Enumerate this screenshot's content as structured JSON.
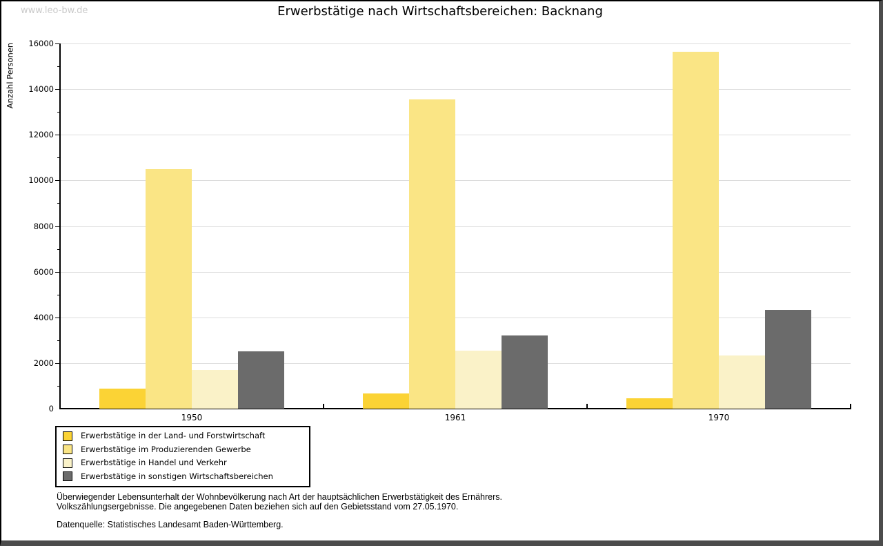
{
  "watermark": "www.leo-bw.de",
  "title": "Erwerbstätige nach Wirtschaftsbereichen: Backnang",
  "chart_data": {
    "type": "bar",
    "title": "Erwerbstätige nach Wirtschaftsbereichen: Backnang",
    "xlabel": "",
    "ylabel": "Anzahl Personen",
    "ylim": [
      0,
      16000
    ],
    "ytick_step": 2000,
    "ytick_minor_step": 1000,
    "grid": true,
    "legend_position": "bottom-left",
    "categories": [
      "1950",
      "1961",
      "1970"
    ],
    "series": [
      {
        "name": "Erwerbstätige in der Land- und Forstwirtschaft",
        "color": "#fbd335",
        "values": [
          890,
          660,
          450
        ]
      },
      {
        "name": "Erwerbstätige im Produzierenden Gewerbe",
        "color": "#fae585",
        "values": [
          10500,
          13550,
          15650
        ]
      },
      {
        "name": "Erwerbstätige in Handel und Verkehr",
        "color": "#faf2c8",
        "values": [
          1680,
          2550,
          2330
        ]
      },
      {
        "name": "Erwerbstätige in sonstigen Wirtschaftsbereichen",
        "color": "#6b6b6b",
        "values": [
          2500,
          3200,
          4330
        ]
      }
    ]
  },
  "footer": {
    "line1": "Überwiegender Lebensunterhalt der Wohnbevölkerung nach Art der hauptsächlichen Erwerbstätigkeit des Ernährers.",
    "line2": "Volkszählungsergebnisse. Die angegebenen Daten beziehen sich auf den Gebietsstand vom 27.05.1970.",
    "source": "Datenquelle: Statistisches Landesamt Baden-Württemberg."
  },
  "colors": {
    "grid": "#dcdcdc",
    "axis": "#000000",
    "watermark": "#c9c9c9",
    "frame_shadow": "#4c4c4c"
  }
}
